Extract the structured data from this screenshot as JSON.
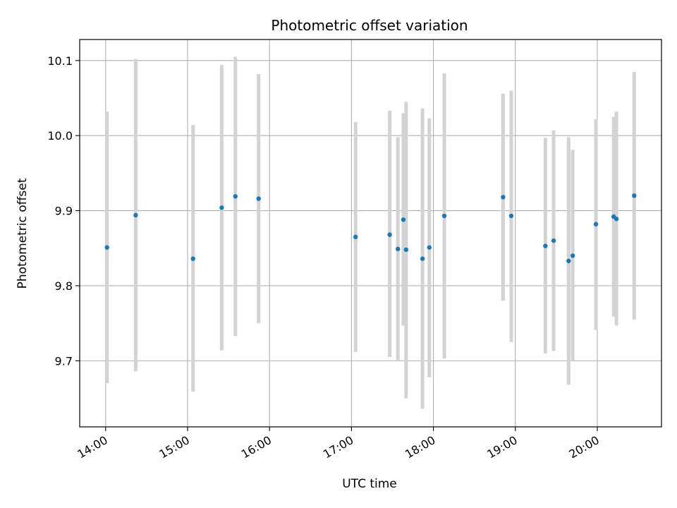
{
  "chart_data": {
    "type": "scatter",
    "title": "Photometric offset variation",
    "xlabel": "UTC time",
    "ylabel": "Photometric offset",
    "x_tick_labels": [
      "14:00",
      "15:00",
      "16:00",
      "17:00",
      "18:00",
      "19:00",
      "20:00"
    ],
    "y_tick_labels": [
      "9.7",
      "9.8",
      "9.9",
      "10.0",
      "10.1"
    ],
    "y_ticks": [
      9.7,
      9.8,
      9.9,
      10.0,
      10.1
    ],
    "xlim": [
      "13:41",
      "20:47"
    ],
    "ylim": [
      9.612,
      10.128
    ],
    "grid": true,
    "errorbar_color": "#d3d3d3",
    "marker_color": "#1f77b4",
    "points": [
      {
        "t": "14:01",
        "y": 9.851,
        "ylo": 9.67,
        "yhi": 10.032
      },
      {
        "t": "14:22",
        "y": 9.894,
        "ylo": 9.686,
        "yhi": 10.102
      },
      {
        "t": "15:04",
        "y": 9.836,
        "ylo": 9.659,
        "yhi": 10.014
      },
      {
        "t": "15:25",
        "y": 9.904,
        "ylo": 9.714,
        "yhi": 10.094
      },
      {
        "t": "15:35",
        "y": 9.919,
        "ylo": 9.733,
        "yhi": 10.105
      },
      {
        "t": "15:52",
        "y": 9.916,
        "ylo": 9.75,
        "yhi": 10.082
      },
      {
        "t": "17:03",
        "y": 9.865,
        "ylo": 9.712,
        "yhi": 10.018
      },
      {
        "t": "17:28",
        "y": 9.868,
        "ylo": 9.705,
        "yhi": 10.033
      },
      {
        "t": "17:34",
        "y": 9.849,
        "ylo": 9.7,
        "yhi": 9.998
      },
      {
        "t": "17:38",
        "y": 9.888,
        "ylo": 9.747,
        "yhi": 10.03
      },
      {
        "t": "17:40",
        "y": 9.848,
        "ylo": 9.65,
        "yhi": 10.045
      },
      {
        "t": "17:52",
        "y": 9.836,
        "ylo": 9.636,
        "yhi": 10.036
      },
      {
        "t": "17:57",
        "y": 9.851,
        "ylo": 9.678,
        "yhi": 10.023
      },
      {
        "t": "18:08",
        "y": 9.893,
        "ylo": 9.703,
        "yhi": 10.083
      },
      {
        "t": "18:51",
        "y": 9.918,
        "ylo": 9.78,
        "yhi": 10.056
      },
      {
        "t": "18:57",
        "y": 9.893,
        "ylo": 9.725,
        "yhi": 10.06
      },
      {
        "t": "19:22",
        "y": 9.853,
        "ylo": 9.71,
        "yhi": 9.997
      },
      {
        "t": "19:28",
        "y": 9.86,
        "ylo": 9.713,
        "yhi": 10.007
      },
      {
        "t": "19:39",
        "y": 9.833,
        "ylo": 9.668,
        "yhi": 9.998
      },
      {
        "t": "19:42",
        "y": 9.84,
        "ylo": 9.7,
        "yhi": 9.981
      },
      {
        "t": "19:59",
        "y": 9.882,
        "ylo": 9.741,
        "yhi": 10.022
      },
      {
        "t": "20:12",
        "y": 9.892,
        "ylo": 9.759,
        "yhi": 10.025
      },
      {
        "t": "20:14",
        "y": 9.889,
        "ylo": 9.747,
        "yhi": 10.032
      },
      {
        "t": "20:27",
        "y": 9.92,
        "ylo": 9.755,
        "yhi": 10.085
      }
    ]
  }
}
